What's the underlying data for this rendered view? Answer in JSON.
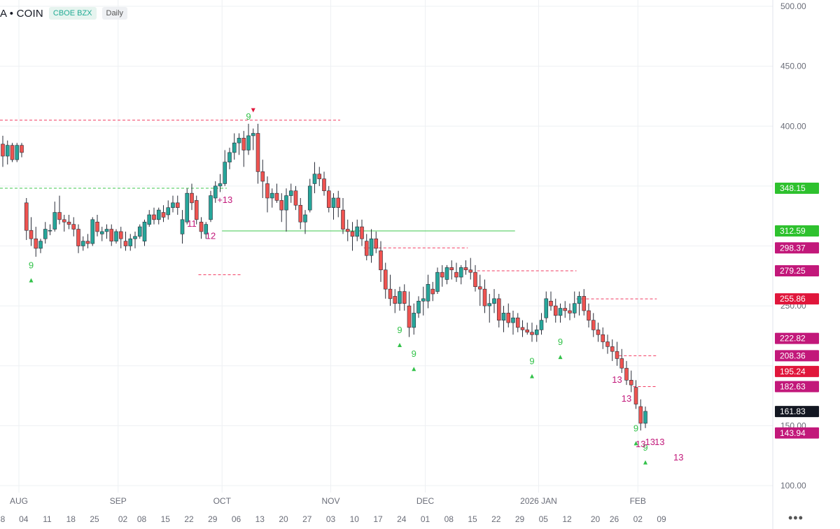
{
  "header": {
    "symbol": "A • COIN",
    "exchange": "CBOE BZX",
    "interval": "Daily"
  },
  "more_label": "•••",
  "colors": {
    "up": "#26a69a",
    "down": "#ef5350",
    "setup_green": "#33c24a",
    "count_magenta": "#c2187a",
    "marker_red": "#e0163b",
    "dashed_red": "#f23b61",
    "dashed_green": "#3fc74f",
    "grid": "#eef0f3"
  },
  "chart_data": {
    "type": "candlestick",
    "y_ticks": [
      "500.00",
      "450.00",
      "400.00",
      "250.00",
      "150.00",
      "100.00"
    ],
    "y_range": [
      90,
      510
    ],
    "month_labels": [
      {
        "text": "AUG",
        "x": "2025-08-01"
      },
      {
        "text": "SEP",
        "x": "2025-09-01"
      },
      {
        "text": "OCT",
        "x": "2025-10-01"
      },
      {
        "text": "NOV",
        "x": "2025-11-03"
      },
      {
        "text": "DEC",
        "x": "2025-12-01"
      },
      {
        "text": "2026 JAN",
        "x": "2026-01-02"
      },
      {
        "text": "FEB",
        "x": "2026-02-02"
      }
    ],
    "day_labels": [
      {
        "text": "8",
        "x": "2025-07-28"
      },
      {
        "text": "04",
        "x": "2025-08-04"
      },
      {
        "text": "11",
        "x": "2025-08-11"
      },
      {
        "text": "18",
        "x": "2025-08-18"
      },
      {
        "text": "25",
        "x": "2025-08-25"
      },
      {
        "text": "02",
        "x": "2025-09-02"
      },
      {
        "text": "08",
        "x": "2025-09-08"
      },
      {
        "text": "15",
        "x": "2025-09-15"
      },
      {
        "text": "22",
        "x": "2025-09-22"
      },
      {
        "text": "29",
        "x": "2025-09-29"
      },
      {
        "text": "06",
        "x": "2025-10-06"
      },
      {
        "text": "13",
        "x": "2025-10-13"
      },
      {
        "text": "20",
        "x": "2025-10-20"
      },
      {
        "text": "27",
        "x": "2025-10-27"
      },
      {
        "text": "03",
        "x": "2025-11-03"
      },
      {
        "text": "10",
        "x": "2025-11-10"
      },
      {
        "text": "17",
        "x": "2025-11-17"
      },
      {
        "text": "24",
        "x": "2025-11-24"
      },
      {
        "text": "01",
        "x": "2025-12-01"
      },
      {
        "text": "08",
        "x": "2025-12-08"
      },
      {
        "text": "15",
        "x": "2025-12-15"
      },
      {
        "text": "22",
        "x": "2025-12-22"
      },
      {
        "text": "29",
        "x": "2025-12-29"
      },
      {
        "text": "05",
        "x": "2026-01-05"
      },
      {
        "text": "12",
        "x": "2026-01-12"
      },
      {
        "text": "20",
        "x": "2026-01-20"
      },
      {
        "text": "26",
        "x": "2026-01-26"
      },
      {
        "text": "02",
        "x": "2026-02-02"
      },
      {
        "text": "09",
        "x": "2026-02-09"
      }
    ],
    "candles": [
      [
        385,
        392,
        366,
        375
      ],
      [
        375,
        388,
        368,
        384
      ],
      [
        384,
        386,
        370,
        372
      ],
      [
        372,
        386,
        370,
        384
      ],
      [
        384,
        386,
        374,
        378
      ],
      [
        336,
        340,
        305,
        313
      ],
      [
        313,
        324,
        300,
        306
      ],
      [
        306,
        316,
        291,
        298
      ],
      [
        298,
        306,
        294,
        304
      ],
      [
        306,
        320,
        302,
        314
      ],
      [
        313,
        318,
        309,
        313
      ],
      [
        314,
        337,
        312,
        328
      ],
      [
        328,
        342,
        318,
        322
      ],
      [
        322,
        326,
        312,
        320
      ],
      [
        320,
        326,
        314,
        318
      ],
      [
        318,
        324,
        308,
        314
      ],
      [
        314,
        318,
        294,
        300
      ],
      [
        300,
        308,
        296,
        304
      ],
      [
        304,
        310,
        298,
        302
      ],
      [
        302,
        324,
        300,
        322
      ],
      [
        320,
        326,
        308,
        312
      ],
      [
        310,
        316,
        304,
        312
      ],
      [
        312,
        318,
        306,
        314
      ],
      [
        314,
        318,
        300,
        304
      ],
      [
        304,
        314,
        302,
        312
      ],
      [
        312,
        316,
        298,
        306
      ],
      [
        304,
        312,
        296,
        300
      ],
      [
        300,
        310,
        296,
        306
      ],
      [
        306,
        312,
        298,
        308
      ],
      [
        308,
        318,
        306,
        316
      ],
      [
        304,
        322,
        300,
        320
      ],
      [
        318,
        330,
        316,
        326
      ],
      [
        326,
        332,
        318,
        322
      ],
      [
        322,
        332,
        318,
        330
      ],
      [
        328,
        334,
        320,
        324
      ],
      [
        326,
        338,
        322,
        332
      ],
      [
        332,
        342,
        328,
        336
      ],
      [
        336,
        342,
        326,
        332
      ],
      [
        310,
        330,
        302,
        322
      ],
      [
        320,
        348,
        318,
        344
      ],
      [
        344,
        352,
        330,
        336
      ],
      [
        338,
        342,
        318,
        322
      ],
      [
        320,
        324,
        306,
        312
      ],
      [
        310,
        320,
        306,
        318
      ],
      [
        322,
        346,
        320,
        342
      ],
      [
        340,
        354,
        336,
        350
      ],
      [
        350,
        360,
        345,
        352
      ],
      [
        352,
        380,
        350,
        370
      ],
      [
        370,
        382,
        364,
        378
      ],
      [
        378,
        394,
        372,
        386
      ],
      [
        386,
        394,
        376,
        390
      ],
      [
        390,
        396,
        366,
        380
      ],
      [
        380,
        402,
        376,
        392
      ],
      [
        392,
        398,
        380,
        394
      ],
      [
        394,
        402,
        352,
        362
      ],
      [
        362,
        372,
        340,
        354
      ],
      [
        352,
        358,
        328,
        340
      ],
      [
        340,
        348,
        332,
        344
      ],
      [
        344,
        352,
        336,
        338
      ],
      [
        338,
        344,
        320,
        330
      ],
      [
        330,
        348,
        312,
        342
      ],
      [
        342,
        352,
        336,
        346
      ],
      [
        346,
        350,
        330,
        334
      ],
      [
        334,
        340,
        314,
        320
      ],
      [
        320,
        330,
        310,
        326
      ],
      [
        330,
        356,
        328,
        350
      ],
      [
        352,
        370,
        344,
        360
      ],
      [
        360,
        366,
        350,
        356
      ],
      [
        356,
        362,
        342,
        346
      ],
      [
        346,
        350,
        328,
        332
      ],
      [
        332,
        344,
        322,
        340
      ],
      [
        340,
        346,
        324,
        332
      ],
      [
        330,
        340,
        310,
        314
      ],
      [
        314,
        322,
        304,
        312
      ],
      [
        312,
        320,
        296,
        308
      ],
      [
        308,
        322,
        304,
        316
      ],
      [
        316,
        322,
        300,
        306
      ],
      [
        304,
        310,
        288,
        292
      ],
      [
        292,
        314,
        286,
        306
      ],
      [
        306,
        312,
        294,
        298
      ],
      [
        296,
        304,
        270,
        280
      ],
      [
        280,
        286,
        256,
        264
      ],
      [
        264,
        276,
        250,
        256
      ],
      [
        258,
        264,
        244,
        252
      ],
      [
        252,
        266,
        246,
        262
      ],
      [
        262,
        268,
        246,
        252
      ],
      [
        250,
        262,
        224,
        232
      ],
      [
        232,
        252,
        226,
        244
      ],
      [
        244,
        258,
        240,
        254
      ],
      [
        254,
        266,
        242,
        256
      ],
      [
        254,
        276,
        248,
        268
      ],
      [
        264,
        270,
        254,
        260
      ],
      [
        262,
        282,
        260,
        278
      ],
      [
        278,
        284,
        266,
        274
      ],
      [
        272,
        284,
        268,
        282
      ],
      [
        282,
        288,
        272,
        280
      ],
      [
        278,
        286,
        270,
        274
      ],
      [
        274,
        284,
        268,
        282
      ],
      [
        282,
        288,
        276,
        280
      ],
      [
        280,
        290,
        272,
        278
      ],
      [
        278,
        284,
        262,
        266
      ],
      [
        266,
        276,
        250,
        264
      ],
      [
        264,
        272,
        244,
        250
      ],
      [
        250,
        260,
        236,
        252
      ],
      [
        252,
        264,
        244,
        256
      ],
      [
        256,
        260,
        232,
        238
      ],
      [
        238,
        250,
        228,
        244
      ],
      [
        244,
        252,
        232,
        236
      ],
      [
        236,
        246,
        226,
        240
      ],
      [
        240,
        244,
        228,
        232
      ],
      [
        232,
        238,
        224,
        230
      ],
      [
        230,
        236,
        226,
        228
      ],
      [
        228,
        236,
        220,
        226
      ],
      [
        226,
        234,
        220,
        230
      ],
      [
        230,
        244,
        226,
        238
      ],
      [
        240,
        262,
        236,
        256
      ],
      [
        254,
        262,
        246,
        250
      ],
      [
        250,
        256,
        236,
        242
      ],
      [
        242,
        252,
        236,
        248
      ],
      [
        248,
        254,
        240,
        246
      ],
      [
        246,
        252,
        238,
        244
      ],
      [
        244,
        262,
        240,
        252
      ],
      [
        252,
        262,
        242,
        258
      ],
      [
        258,
        264,
        242,
        246
      ],
      [
        246,
        252,
        232,
        238
      ],
      [
        238,
        244,
        224,
        230
      ],
      [
        230,
        236,
        220,
        226
      ],
      [
        226,
        232,
        214,
        220
      ],
      [
        220,
        226,
        210,
        216
      ],
      [
        216,
        222,
        204,
        212
      ],
      [
        212,
        220,
        200,
        206
      ],
      [
        206,
        214,
        194,
        198
      ],
      [
        198,
        204,
        184,
        188
      ],
      [
        188,
        196,
        178,
        184
      ],
      [
        182,
        188,
        164,
        168
      ],
      [
        166,
        172,
        146,
        152
      ],
      [
        152,
        166,
        148,
        162
      ]
    ],
    "start_date": "2025-07-28",
    "annotations": {
      "setup_labels_green": [
        "9",
        "9",
        "9",
        "9",
        "9",
        "9",
        "9",
        "9"
      ],
      "count_labels_magenta": [
        "13",
        "13",
        "13",
        "13",
        "13",
        "+13",
        "11",
        "12",
        "13"
      ]
    },
    "horizontal_lines": [
      {
        "style": "dashed",
        "color": "dashed_red",
        "y": 405,
        "from": "2025-07-28",
        "to": "2025-11-05"
      },
      {
        "style": "dashed",
        "color": "dashed_green",
        "y": 348.15,
        "from": "2025-07-28",
        "to": "2025-10-02"
      },
      {
        "style": "solid",
        "color": "dashed_green",
        "y": 312.59,
        "from": "2025-10-01",
        "to": "2025-12-26"
      },
      {
        "style": "dashed",
        "color": "dashed_red",
        "y": 298.37,
        "from": "2025-11-12",
        "to": "2025-12-12"
      },
      {
        "style": "dashed",
        "color": "dashed_red",
        "y": 279.25,
        "from": "2025-12-16",
        "to": "2026-01-14"
      },
      {
        "style": "dashed",
        "color": "dashed_red",
        "y": 255.86,
        "from": "2026-01-14",
        "to": "2026-02-06"
      },
      {
        "style": "dashed",
        "color": "dashed_red",
        "y": 208.36,
        "from": "2026-01-27",
        "to": "2026-02-06"
      },
      {
        "style": "dashed",
        "color": "dashed_red",
        "y": 182.63,
        "from": "2026-01-30",
        "to": "2026-02-06"
      },
      {
        "style": "dashed",
        "color": "dashed_red",
        "y": 276,
        "from": "2025-09-24",
        "to": "2025-10-07"
      }
    ],
    "price_labels": [
      {
        "text": "348.15",
        "bg": "#2ec12e",
        "fg": "#ffffff",
        "value": 348.15
      },
      {
        "text": "312.59",
        "bg": "#2ec12e",
        "fg": "#ffffff",
        "value": 312.59
      },
      {
        "text": "298.37",
        "bg": "#c2187a",
        "fg": "#ffffff",
        "value": 298.37
      },
      {
        "text": "279.25",
        "bg": "#c2187a",
        "fg": "#ffffff",
        "value": 279.25
      },
      {
        "text": "255.86",
        "bg": "#e0163b",
        "fg": "#ffffff",
        "value": 255.86
      },
      {
        "text": "222.82",
        "bg": "#c2187a",
        "fg": "#ffffff",
        "value": 222.82
      },
      {
        "text": "208.36",
        "bg": "#c2187a",
        "fg": "#ffffff",
        "value": 208.36
      },
      {
        "text": "195.24",
        "bg": "#e0163b",
        "fg": "#ffffff",
        "value": 195.24
      },
      {
        "text": "182.63",
        "bg": "#c2187a",
        "fg": "#ffffff",
        "value": 182.63
      },
      {
        "text": "161.83",
        "bg": "#131722",
        "fg": "#ffffff",
        "value": 161.83
      },
      {
        "text": "143.94",
        "bg": "#c2187a",
        "fg": "#ffffff",
        "value": 143.94
      }
    ]
  }
}
